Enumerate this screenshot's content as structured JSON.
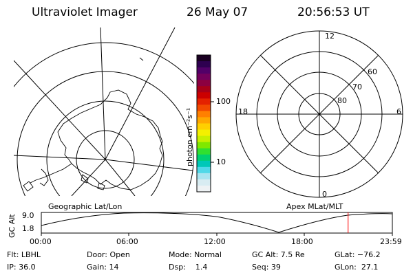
{
  "header": {
    "title": "Ultraviolet Imager",
    "date": "26 May 07",
    "time": "20:56:53 UT"
  },
  "geo_map": {
    "caption": "Geographic Lat/Lon"
  },
  "colorbar": {
    "unit_label": "photon cm⁻²s⁻¹",
    "ticks": [
      "100",
      "10"
    ],
    "colors": [
      "#1a0022",
      "#2e0050",
      "#520068",
      "#74005c",
      "#8c0040",
      "#a80018",
      "#cc0000",
      "#e42200",
      "#f24a00",
      "#ff8000",
      "#ffa800",
      "#ffd000",
      "#f4f000",
      "#c8f000",
      "#80e800",
      "#30e030",
      "#00d070",
      "#00c8b8",
      "#50d8e8",
      "#a8e4f0",
      "#d8ecf2",
      "#eef2f4"
    ]
  },
  "polar_plot": {
    "caption": "Apex MLat/MLT",
    "mlt_labels": {
      "top": "12",
      "bottom": "0",
      "left": "18",
      "right": "6"
    },
    "lat_labels": [
      "80",
      "70",
      "60"
    ]
  },
  "altitude_plot": {
    "axis_label": "GC Alt",
    "y_ticks": [
      "9.0",
      "1.8"
    ],
    "x_ticks": [
      "00:00",
      "06:00",
      "12:00",
      "18:00",
      "23:59"
    ],
    "current_time_fraction": 0.874,
    "marker_color": "#ff0000"
  },
  "info": {
    "row1": [
      "Flt: LBHL",
      "Door: Open",
      "Mode: Normal",
      "GC Alt: 7.5 Re",
      "GLat: −76.2"
    ],
    "row2": [
      "IP: 36.0",
      "Gain: 14",
      "Dsp:    1.4",
      "Seq: 39",
      "GLon:  27.1"
    ]
  }
}
